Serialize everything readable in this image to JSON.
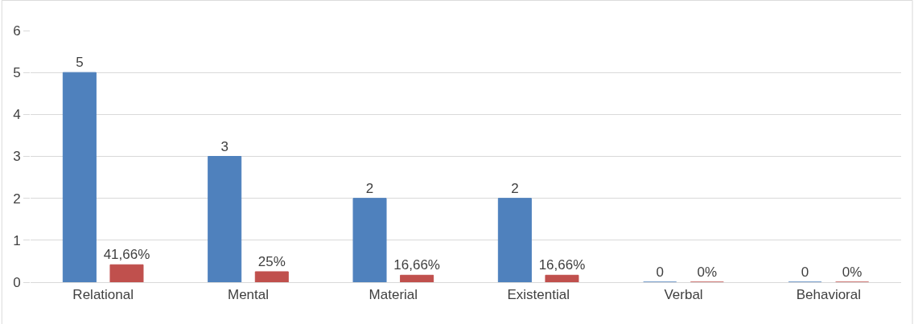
{
  "chart_data": {
    "type": "bar",
    "categories": [
      "Relational",
      "Mental",
      "Material",
      "Existential",
      "Verbal",
      "Behavioral"
    ],
    "series": [
      {
        "color": "#4f81bd",
        "values": [
          5,
          3,
          2,
          2,
          0,
          0
        ],
        "value_labels": [
          "5",
          "3",
          "2",
          "2",
          "0",
          "0"
        ]
      },
      {
        "color": "#c0504d",
        "values": [
          0.4166,
          0.25,
          0.1666,
          0.1666,
          0,
          0
        ],
        "value_labels": [
          "41,66%",
          "25%",
          "16,66%",
          "16,66%",
          "0%",
          "0%"
        ]
      }
    ],
    "ylim": [
      0,
      6
    ],
    "yticks": [
      0,
      1,
      2,
      3,
      4,
      5,
      6
    ],
    "grid": "y",
    "legend": false
  }
}
